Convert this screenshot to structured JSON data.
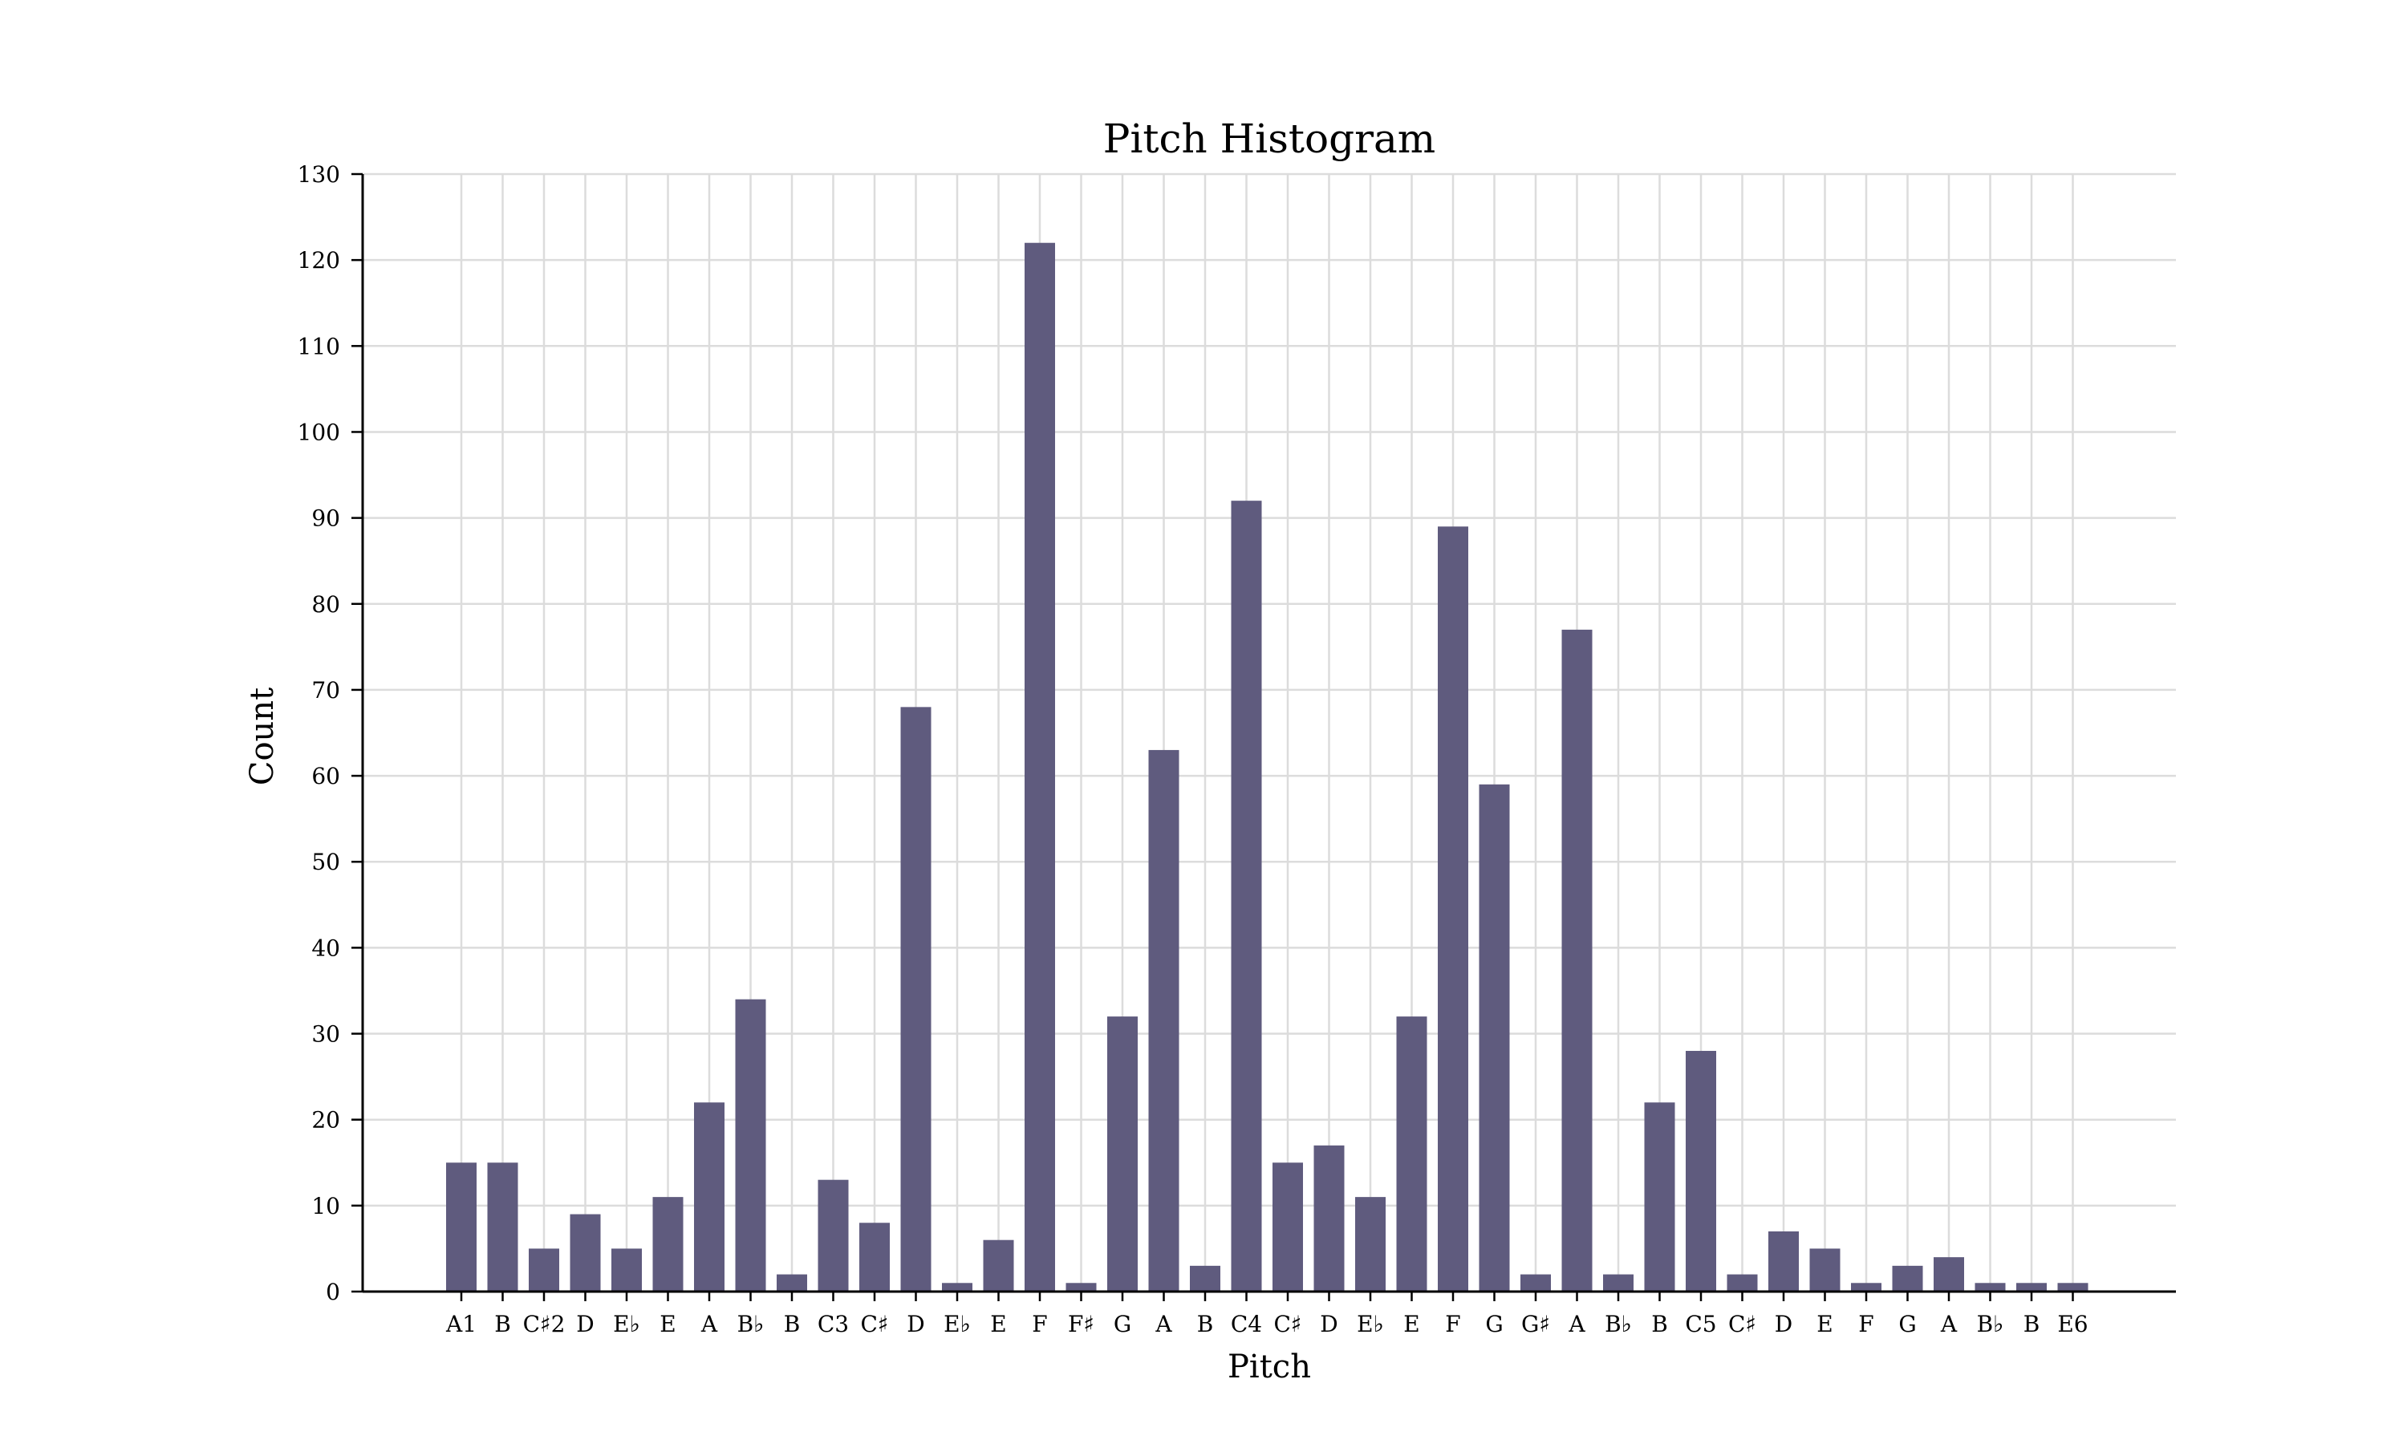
{
  "chart_data": {
    "type": "bar",
    "title": "Pitch Histogram",
    "xlabel": "Pitch",
    "ylabel": "Count",
    "ylim": [
      0,
      130
    ],
    "yticks": [
      0,
      10,
      20,
      30,
      40,
      50,
      60,
      70,
      80,
      90,
      100,
      110,
      120,
      130
    ],
    "grid": true,
    "bar_color": "#5f5b7e",
    "categories": [
      "A1",
      "B",
      "C♯2",
      "D",
      "E♭",
      "E",
      "A",
      "B♭",
      "B",
      "C3",
      "C♯",
      "D",
      "E♭",
      "E",
      "F",
      "F♯",
      "G",
      "A",
      "B",
      "C4",
      "C♯",
      "D",
      "E♭",
      "E",
      "F",
      "G",
      "G♯",
      "A",
      "B♭",
      "B",
      "C5",
      "C♯",
      "D",
      "E",
      "F",
      "G",
      "A",
      "B♭",
      "B",
      "E6"
    ],
    "values": [
      15,
      15,
      5,
      9,
      5,
      11,
      22,
      34,
      2,
      13,
      8,
      68,
      1,
      6,
      122,
      1,
      32,
      63,
      3,
      92,
      15,
      17,
      11,
      32,
      89,
      59,
      2,
      77,
      2,
      22,
      28,
      2,
      7,
      5,
      1,
      3,
      4,
      1,
      1,
      1
    ]
  }
}
